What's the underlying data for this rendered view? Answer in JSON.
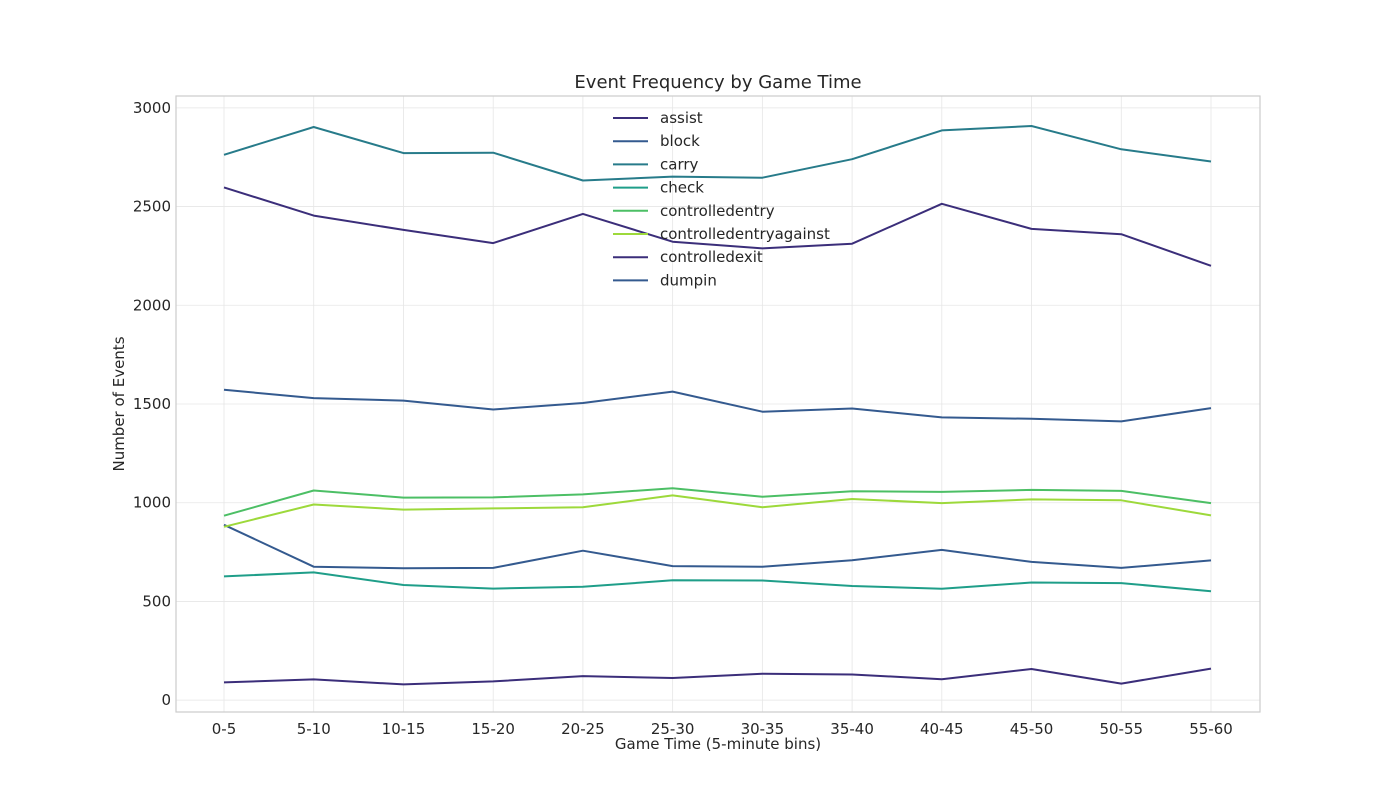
{
  "chart_data": {
    "type": "line",
    "title": "Event Frequency by Game Time",
    "xlabel": "Game Time (5-minute bins)",
    "ylabel": "Number of Events",
    "categories": [
      "0-5",
      "5-10",
      "10-15",
      "15-20",
      "20-25",
      "25-30",
      "30-35",
      "35-40",
      "40-45",
      "45-50",
      "50-55",
      "55-60"
    ],
    "ylim": [
      -60,
      3060
    ],
    "yticks": [
      0,
      500,
      1000,
      1500,
      2000,
      2500,
      3000
    ],
    "ytick_labels": [
      "0",
      "500",
      "1000",
      "1500",
      "2000",
      "2500",
      "3000"
    ],
    "grid": true,
    "legend_position": "top-center",
    "series": [
      {
        "name": "assist",
        "color": "#3b2e7a",
        "values": [
          90,
          105,
          80,
          95,
          122,
          112,
          134,
          130,
          106,
          158,
          84,
          160
        ]
      },
      {
        "name": "block",
        "color": "#345a8f",
        "values": [
          888,
          676,
          668,
          670,
          757,
          679,
          676,
          709,
          761,
          700,
          670,
          708
        ]
      },
      {
        "name": "carry",
        "color": "#277b8a",
        "values": [
          2762,
          2903,
          2771,
          2773,
          2632,
          2652,
          2646,
          2740,
          2886,
          2908,
          2790,
          2728
        ]
      },
      {
        "name": "check",
        "color": "#1f9e89",
        "values": [
          627,
          647,
          583,
          565,
          574,
          607,
          606,
          578,
          564,
          596,
          593,
          552
        ]
      },
      {
        "name": "controlledentry",
        "color": "#4cbf65",
        "values": [
          934,
          1062,
          1026,
          1027,
          1042,
          1073,
          1030,
          1058,
          1055,
          1065,
          1060,
          998
        ]
      },
      {
        "name": "controlledentryagainst",
        "color": "#9dd93b",
        "values": [
          878,
          991,
          965,
          971,
          977,
          1037,
          977,
          1019,
          998,
          1017,
          1012,
          936
        ]
      },
      {
        "name": "controlledexit",
        "color": "#3b2e7a",
        "values": [
          2597,
          2454,
          2382,
          2315,
          2463,
          2322,
          2288,
          2312,
          2514,
          2387,
          2360,
          2200
        ]
      },
      {
        "name": "dumpin",
        "color": "#345a8f",
        "values": [
          1572,
          1530,
          1517,
          1472,
          1505,
          1563,
          1461,
          1477,
          1432,
          1425,
          1412,
          1479
        ]
      }
    ]
  }
}
